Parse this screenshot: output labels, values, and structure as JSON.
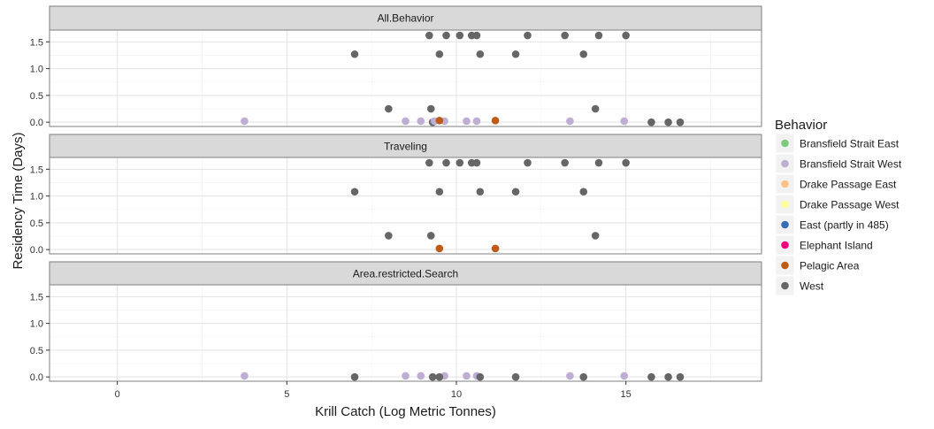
{
  "chart_data": {
    "type": "scatter",
    "xlabel": "Krill Catch (Log Metric Tonnes)",
    "ylabel": "Residency Time (Days)",
    "xlim": [
      -2,
      19
    ],
    "ylim": [
      -0.08,
      1.72
    ],
    "x_ticks": [
      0,
      5,
      10,
      15
    ],
    "x_tick_labels": [
      "0",
      "5",
      "10",
      "15"
    ],
    "y_ticks": [
      0.0,
      0.5,
      1.0,
      1.5
    ],
    "y_tick_labels": [
      "0.0",
      "0.5",
      "1.0",
      "1.5"
    ],
    "grid": true,
    "legend": {
      "title": "Behavior",
      "placement": "right",
      "entries": [
        {
          "name": "Bransfield Strait East",
          "color": "#7fc97f"
        },
        {
          "name": "Bransfield Strait West",
          "color": "#beaed4"
        },
        {
          "name": "Drake Passage East",
          "color": "#fdc086"
        },
        {
          "name": "Drake Passage West",
          "color": "#ffff99"
        },
        {
          "name": "East (partly in 485)",
          "color": "#386cb0"
        },
        {
          "name": "Elephant Island",
          "color": "#f0027f"
        },
        {
          "name": "Pelagic Area",
          "color": "#bf5b17"
        },
        {
          "name": "West",
          "color": "#666666"
        }
      ]
    },
    "panels": [
      {
        "title": "All.Behavior",
        "points": [
          {
            "x": 9.2,
            "y": 1.62,
            "group": "West"
          },
          {
            "x": 9.7,
            "y": 1.62,
            "group": "West"
          },
          {
            "x": 10.1,
            "y": 1.62,
            "group": "West"
          },
          {
            "x": 10.45,
            "y": 1.62,
            "group": "West"
          },
          {
            "x": 10.6,
            "y": 1.62,
            "group": "West"
          },
          {
            "x": 12.1,
            "y": 1.62,
            "group": "West"
          },
          {
            "x": 13.2,
            "y": 1.62,
            "group": "West"
          },
          {
            "x": 14.2,
            "y": 1.62,
            "group": "West"
          },
          {
            "x": 15.0,
            "y": 1.62,
            "group": "West"
          },
          {
            "x": 7.0,
            "y": 1.27,
            "group": "West"
          },
          {
            "x": 9.5,
            "y": 1.27,
            "group": "West"
          },
          {
            "x": 10.7,
            "y": 1.27,
            "group": "West"
          },
          {
            "x": 11.75,
            "y": 1.27,
            "group": "West"
          },
          {
            "x": 13.75,
            "y": 1.27,
            "group": "West"
          },
          {
            "x": 8.0,
            "y": 0.25,
            "group": "West"
          },
          {
            "x": 9.25,
            "y": 0.25,
            "group": "West"
          },
          {
            "x": 14.1,
            "y": 0.25,
            "group": "West"
          },
          {
            "x": 9.3,
            "y": 0.0,
            "group": "West"
          },
          {
            "x": 15.75,
            "y": 0.0,
            "group": "West"
          },
          {
            "x": 16.25,
            "y": 0.0,
            "group": "West"
          },
          {
            "x": 16.6,
            "y": 0.0,
            "group": "West"
          },
          {
            "x": 3.75,
            "y": 0.02,
            "group": "Bransfield Strait West"
          },
          {
            "x": 8.5,
            "y": 0.02,
            "group": "Bransfield Strait West"
          },
          {
            "x": 8.95,
            "y": 0.02,
            "group": "Bransfield Strait West"
          },
          {
            "x": 9.35,
            "y": 0.02,
            "group": "Bransfield Strait West"
          },
          {
            "x": 9.65,
            "y": 0.02,
            "group": "Bransfield Strait West"
          },
          {
            "x": 10.3,
            "y": 0.02,
            "group": "Bransfield Strait West"
          },
          {
            "x": 10.6,
            "y": 0.02,
            "group": "Bransfield Strait West"
          },
          {
            "x": 13.35,
            "y": 0.02,
            "group": "Bransfield Strait West"
          },
          {
            "x": 14.95,
            "y": 0.02,
            "group": "Bransfield Strait West"
          },
          {
            "x": 9.5,
            "y": 0.03,
            "group": "Pelagic Area"
          },
          {
            "x": 11.15,
            "y": 0.03,
            "group": "Pelagic Area"
          }
        ]
      },
      {
        "title": "Traveling",
        "points": [
          {
            "x": 9.2,
            "y": 1.62,
            "group": "West"
          },
          {
            "x": 9.7,
            "y": 1.62,
            "group": "West"
          },
          {
            "x": 10.1,
            "y": 1.62,
            "group": "West"
          },
          {
            "x": 10.45,
            "y": 1.62,
            "group": "West"
          },
          {
            "x": 10.6,
            "y": 1.62,
            "group": "West"
          },
          {
            "x": 12.1,
            "y": 1.62,
            "group": "West"
          },
          {
            "x": 13.2,
            "y": 1.62,
            "group": "West"
          },
          {
            "x": 14.2,
            "y": 1.62,
            "group": "West"
          },
          {
            "x": 15.0,
            "y": 1.62,
            "group": "West"
          },
          {
            "x": 7.0,
            "y": 1.08,
            "group": "West"
          },
          {
            "x": 9.5,
            "y": 1.08,
            "group": "West"
          },
          {
            "x": 10.7,
            "y": 1.08,
            "group": "West"
          },
          {
            "x": 11.75,
            "y": 1.08,
            "group": "West"
          },
          {
            "x": 13.75,
            "y": 1.08,
            "group": "West"
          },
          {
            "x": 8.0,
            "y": 0.26,
            "group": "West"
          },
          {
            "x": 9.25,
            "y": 0.26,
            "group": "West"
          },
          {
            "x": 14.1,
            "y": 0.26,
            "group": "West"
          },
          {
            "x": 9.5,
            "y": 0.02,
            "group": "Pelagic Area"
          },
          {
            "x": 11.15,
            "y": 0.02,
            "group": "Pelagic Area"
          }
        ]
      },
      {
        "title": "Area.restricted.Search",
        "points": [
          {
            "x": 3.75,
            "y": 0.02,
            "group": "Bransfield Strait West"
          },
          {
            "x": 8.5,
            "y": 0.02,
            "group": "Bransfield Strait West"
          },
          {
            "x": 8.95,
            "y": 0.02,
            "group": "Bransfield Strait West"
          },
          {
            "x": 9.65,
            "y": 0.02,
            "group": "Bransfield Strait West"
          },
          {
            "x": 10.3,
            "y": 0.02,
            "group": "Bransfield Strait West"
          },
          {
            "x": 10.6,
            "y": 0.02,
            "group": "Bransfield Strait West"
          },
          {
            "x": 13.35,
            "y": 0.02,
            "group": "Bransfield Strait West"
          },
          {
            "x": 14.95,
            "y": 0.02,
            "group": "Bransfield Strait West"
          },
          {
            "x": 7.0,
            "y": 0.0,
            "group": "West"
          },
          {
            "x": 9.3,
            "y": 0.0,
            "group": "West"
          },
          {
            "x": 9.5,
            "y": 0.0,
            "group": "West"
          },
          {
            "x": 10.7,
            "y": 0.0,
            "group": "West"
          },
          {
            "x": 11.75,
            "y": 0.0,
            "group": "West"
          },
          {
            "x": 13.75,
            "y": 0.0,
            "group": "West"
          },
          {
            "x": 15.75,
            "y": 0.0,
            "group": "West"
          },
          {
            "x": 16.25,
            "y": 0.0,
            "group": "West"
          },
          {
            "x": 16.6,
            "y": 0.0,
            "group": "West"
          }
        ]
      }
    ]
  }
}
